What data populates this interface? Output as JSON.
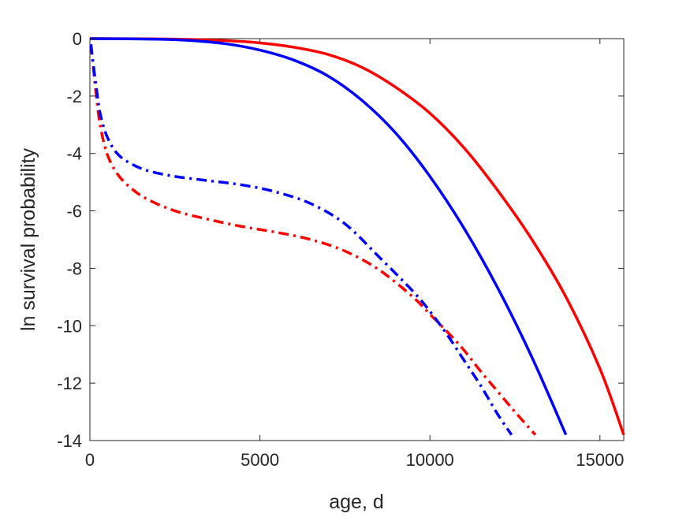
{
  "chart_data": {
    "type": "line",
    "xlabel": "age, d",
    "ylabel": "ln survival probability",
    "xlim": [
      0,
      15700
    ],
    "ylim": [
      -14,
      0
    ],
    "xticks": [
      0,
      5000,
      10000,
      15000
    ],
    "xtick_labels": [
      "0",
      "5000",
      "10000",
      "15000"
    ],
    "yticks": [
      0,
      -2,
      -4,
      -6,
      -8,
      -10,
      -12,
      -14
    ],
    "ytick_labels": [
      "0",
      "-2",
      "-4",
      "-6",
      "-8",
      "-10",
      "-12",
      "-14"
    ],
    "grid": false,
    "legend": "none",
    "series": [
      {
        "color": "#ff0000",
        "style": "solid",
        "x": [
          0,
          2000,
          3000,
          4000,
          5000,
          6000,
          7000,
          8000,
          9000,
          10000,
          11000,
          12000,
          13000,
          14000,
          15000,
          15700
        ],
        "y": [
          0,
          -0.01,
          -0.03,
          -0.07,
          -0.15,
          -0.3,
          -0.55,
          -1.0,
          -1.7,
          -2.6,
          -3.8,
          -5.3,
          -7.0,
          -9.0,
          -11.5,
          -13.8
        ]
      },
      {
        "color": "#0000ff",
        "style": "solid",
        "x": [
          0,
          2000,
          3000,
          4000,
          5000,
          6000,
          7000,
          8000,
          9000,
          10000,
          11000,
          12000,
          13000,
          14000
        ],
        "y": [
          0,
          -0.02,
          -0.07,
          -0.18,
          -0.4,
          -0.75,
          -1.3,
          -2.15,
          -3.3,
          -4.8,
          -6.6,
          -8.7,
          -11.1,
          -13.8
        ]
      },
      {
        "color": "#ff0000",
        "style": "dashdot",
        "x": [
          30,
          100,
          200,
          300,
          500,
          800,
          1200,
          1700,
          2500,
          3500,
          4500,
          5500,
          6500,
          7500,
          8500,
          9500,
          10000,
          10500,
          11000,
          11500,
          12000,
          12500,
          13100
        ],
        "y": [
          -0.2,
          -1.0,
          -2.1,
          -3.0,
          -4.0,
          -4.7,
          -5.2,
          -5.6,
          -6.0,
          -6.3,
          -6.55,
          -6.75,
          -7.0,
          -7.4,
          -8.05,
          -9.0,
          -9.6,
          -10.2,
          -10.85,
          -11.6,
          -12.3,
          -13.0,
          -13.8
        ]
      },
      {
        "color": "#0000ff",
        "style": "dashdot",
        "x": [
          30,
          100,
          200,
          300,
          500,
          800,
          1200,
          1700,
          2500,
          3500,
          4500,
          5500,
          6500,
          7500,
          8500,
          9500,
          10000,
          10500,
          11000,
          11500,
          12000,
          12400
        ],
        "y": [
          -0.2,
          -0.9,
          -1.8,
          -2.6,
          -3.4,
          -4.0,
          -4.35,
          -4.6,
          -4.8,
          -4.95,
          -5.1,
          -5.35,
          -5.75,
          -6.45,
          -7.6,
          -8.8,
          -9.5,
          -10.3,
          -11.2,
          -12.1,
          -13.1,
          -13.8
        ]
      }
    ]
  }
}
